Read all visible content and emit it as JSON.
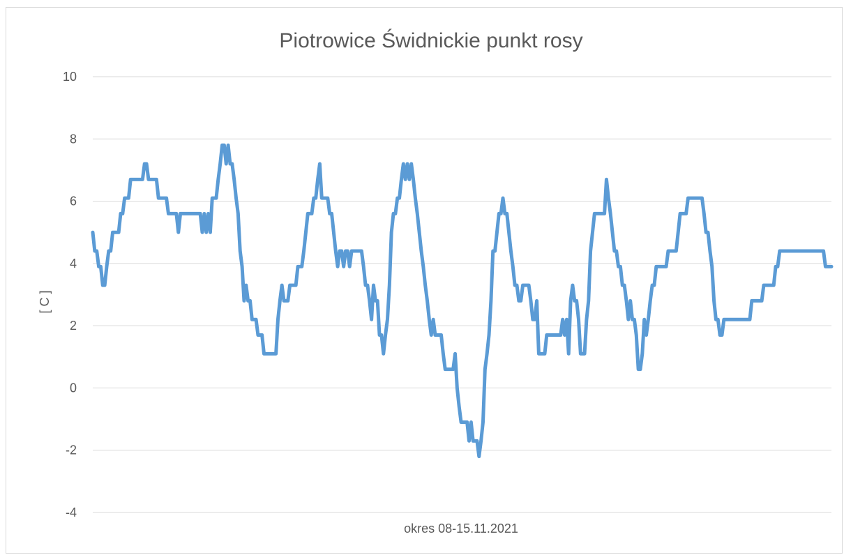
{
  "chart_data": {
    "type": "line",
    "title": "Piotrowice Świdnickie punkt rosy",
    "xlabel": "okres 08-15.11.2021",
    "ylabel": "[ C ]",
    "ylim": [
      -4,
      10
    ],
    "yticks": [
      10,
      8,
      6,
      4,
      2,
      0,
      -2,
      -4
    ],
    "grid": true,
    "color": "#5b9bd5",
    "series": [
      {
        "values": [
          5.0,
          4.4,
          4.4,
          3.9,
          3.9,
          3.3,
          3.3,
          3.9,
          4.4,
          4.4,
          5.0,
          5.0,
          5.0,
          5.0,
          5.6,
          5.6,
          6.1,
          6.1,
          6.1,
          6.7,
          6.7,
          6.7,
          6.7,
          6.7,
          6.7,
          6.7,
          7.2,
          7.2,
          6.7,
          6.7,
          6.7,
          6.7,
          6.7,
          6.1,
          6.1,
          6.1,
          6.1,
          6.1,
          5.6,
          5.6,
          5.6,
          5.6,
          5.6,
          5.0,
          5.6,
          5.6,
          5.6,
          5.6,
          5.6,
          5.6,
          5.6,
          5.6,
          5.6,
          5.6,
          5.6,
          5.0,
          5.6,
          5.0,
          5.6,
          5.0,
          6.1,
          6.1,
          6.1,
          6.7,
          7.2,
          7.8,
          7.8,
          7.2,
          7.8,
          7.2,
          7.2,
          6.7,
          6.1,
          5.6,
          4.4,
          3.9,
          2.8,
          3.3,
          2.8,
          2.8,
          2.2,
          2.2,
          2.2,
          1.7,
          1.7,
          1.7,
          1.1,
          1.1,
          1.1,
          1.1,
          1.1,
          1.1,
          1.1,
          2.2,
          2.8,
          3.3,
          2.8,
          2.8,
          2.8,
          3.3,
          3.3,
          3.3,
          3.3,
          3.9,
          3.9,
          3.9,
          4.4,
          5.0,
          5.6,
          5.6,
          5.6,
          6.1,
          6.1,
          6.7,
          7.2,
          6.1,
          6.1,
          6.1,
          6.1,
          5.6,
          5.6,
          5.0,
          4.4,
          3.9,
          4.4,
          4.4,
          3.9,
          4.4,
          4.4,
          3.9,
          4.4,
          4.4,
          4.4,
          4.4,
          4.4,
          4.4,
          3.9,
          3.3,
          3.3,
          2.8,
          2.2,
          3.3,
          2.8,
          2.8,
          1.7,
          1.7,
          1.1,
          1.7,
          2.2,
          3.3,
          5.0,
          5.6,
          5.6,
          6.1,
          6.1,
          6.7,
          7.2,
          6.7,
          7.2,
          6.7,
          7.2,
          6.7,
          6.1,
          5.6,
          5.0,
          4.4,
          3.9,
          3.3,
          2.8,
          2.2,
          1.7,
          2.2,
          1.7,
          1.7,
          1.7,
          1.7,
          1.1,
          0.6,
          0.6,
          0.6,
          0.6,
          0.6,
          1.1,
          0.0,
          -0.6,
          -1.1,
          -1.1,
          -1.1,
          -1.1,
          -1.7,
          -1.1,
          -1.7,
          -1.7,
          -1.7,
          -2.2,
          -1.7,
          -1.1,
          0.6,
          1.1,
          1.7,
          2.8,
          4.4,
          4.4,
          5.0,
          5.6,
          5.6,
          6.1,
          5.6,
          5.6,
          5.0,
          4.4,
          3.9,
          3.3,
          3.3,
          2.8,
          2.8,
          3.3,
          3.3,
          3.3,
          3.3,
          2.8,
          2.2,
          2.2,
          2.8,
          1.1,
          1.1,
          1.1,
          1.1,
          1.7,
          1.7,
          1.7,
          1.7,
          1.7,
          1.7,
          1.7,
          1.7,
          2.2,
          1.7,
          2.2,
          1.1,
          2.8,
          3.3,
          2.8,
          2.8,
          2.2,
          1.1,
          1.1,
          1.1,
          2.2,
          2.8,
          4.4,
          5.0,
          5.6,
          5.6,
          5.6,
          5.6,
          5.6,
          5.6,
          6.7,
          6.1,
          5.6,
          5.0,
          4.4,
          4.4,
          3.9,
          3.9,
          3.3,
          3.3,
          2.8,
          2.2,
          2.8,
          2.2,
          2.2,
          1.7,
          0.6,
          0.6,
          1.1,
          2.2,
          1.7,
          2.2,
          2.8,
          3.3,
          3.3,
          3.9,
          3.9,
          3.9,
          3.9,
          3.9,
          3.9,
          4.4,
          4.4,
          4.4,
          4.4,
          4.4,
          5.0,
          5.6,
          5.6,
          5.6,
          5.6,
          6.1,
          6.1,
          6.1,
          6.1,
          6.1,
          6.1,
          6.1,
          6.1,
          5.6,
          5.0,
          5.0,
          4.4,
          3.9,
          2.8,
          2.2,
          2.2,
          1.7,
          1.7,
          2.2,
          2.2,
          2.2,
          2.2,
          2.2,
          2.2,
          2.2,
          2.2,
          2.2,
          2.2,
          2.2,
          2.2,
          2.2,
          2.2,
          2.8,
          2.8,
          2.8,
          2.8,
          2.8,
          2.8,
          3.3,
          3.3,
          3.3,
          3.3,
          3.3,
          3.3,
          3.9,
          3.9,
          4.4,
          4.4,
          4.4,
          4.4,
          4.4,
          4.4,
          4.4,
          4.4,
          4.4,
          4.4,
          4.4,
          4.4,
          4.4,
          4.4,
          4.4,
          4.4,
          4.4,
          4.4,
          4.4,
          4.4,
          4.4,
          4.4,
          4.4,
          3.9,
          3.9,
          3.9,
          3.9
        ]
      }
    ]
  }
}
